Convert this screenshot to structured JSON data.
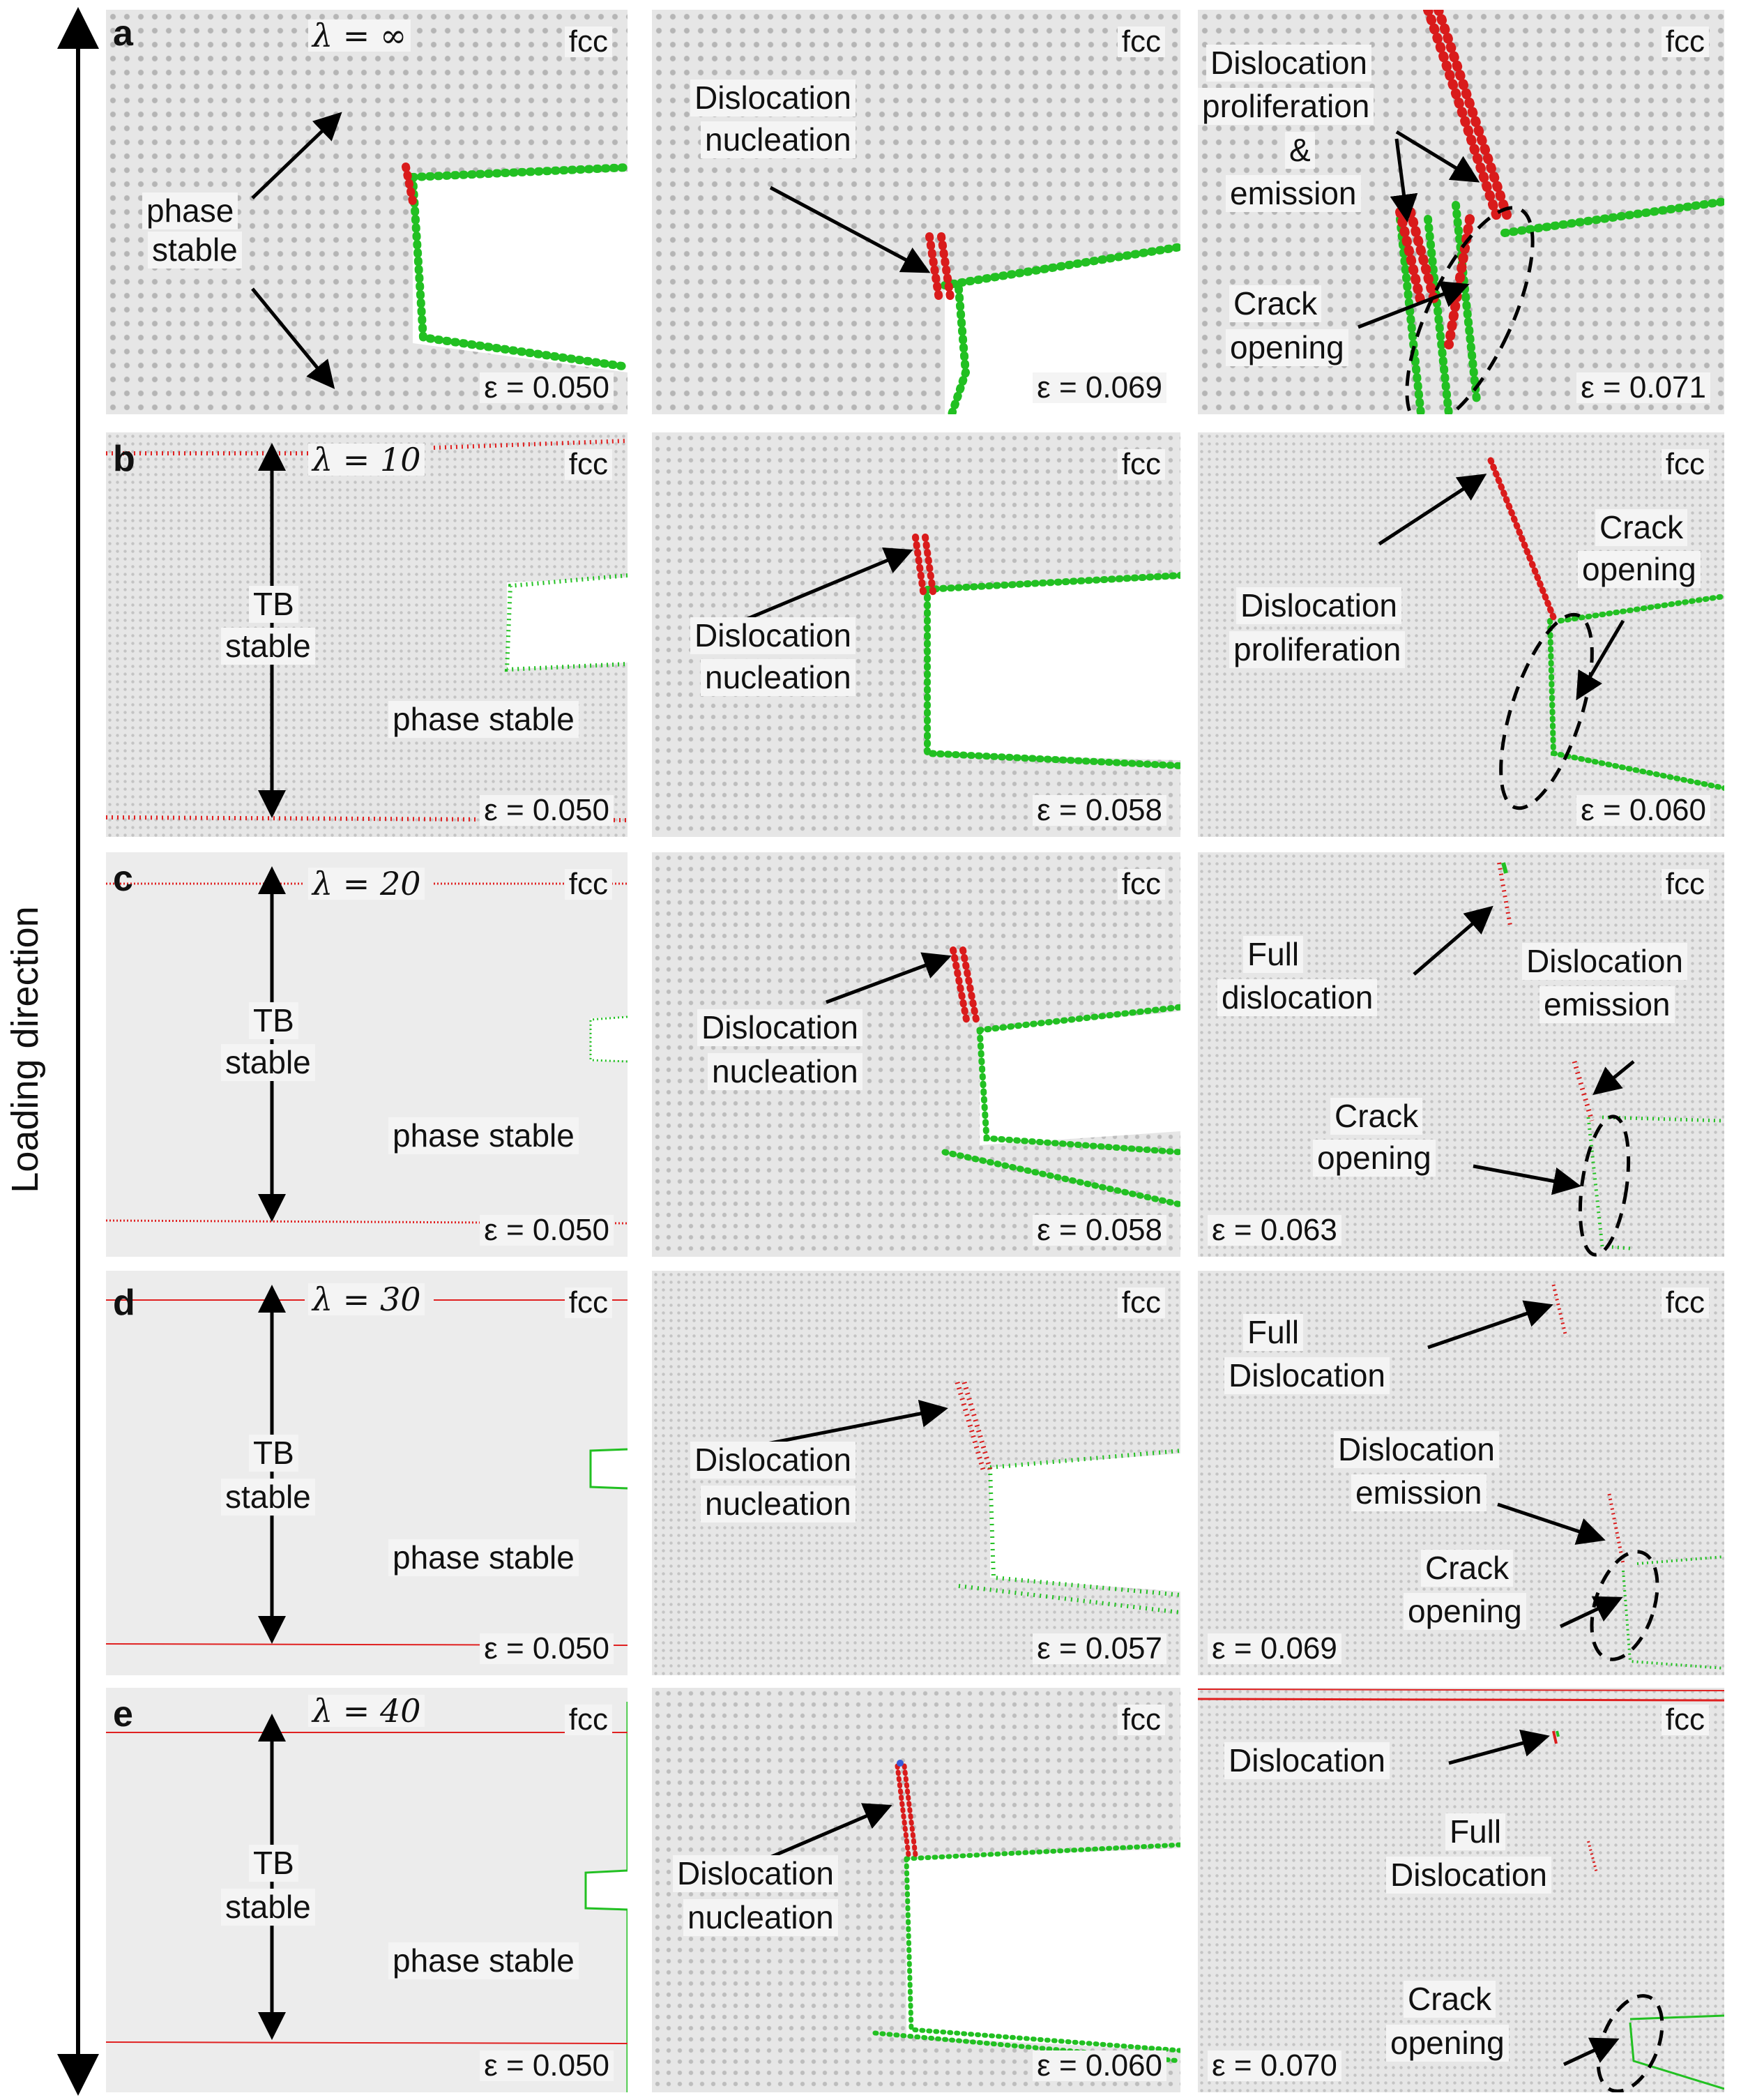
{
  "axis": {
    "label": "Loading direction"
  },
  "colors": {
    "dislocation": "#d91b1b",
    "surface": "#20c020",
    "arrow": "#000000",
    "twin": "#e02020"
  },
  "rows": [
    {
      "letter": "a",
      "lambda": "λ = ∞",
      "fcc": "fcc",
      "col1": {
        "labels": [
          "phase",
          "stable"
        ],
        "strain": "ε = 0.050"
      },
      "col2": {
        "labels": [
          "Dislocation",
          "nucleation"
        ],
        "strain": "ε = 0.069",
        "fcc": "fcc"
      },
      "col3": {
        "labels": [
          "Dislocation",
          "proliferation",
          "&",
          "emission",
          "Crack",
          "opening"
        ],
        "strain": "ε = 0.071",
        "fcc": "fcc"
      }
    },
    {
      "letter": "b",
      "lambda": "λ = 10",
      "fcc": "fcc",
      "col1": {
        "labels": [
          "TB",
          "stable",
          "phase stable"
        ],
        "strain": "ε = 0.050"
      },
      "col2": {
        "labels": [
          "Dislocation",
          "nucleation"
        ],
        "strain": "ε = 0.058",
        "fcc": "fcc"
      },
      "col3": {
        "labels": [
          "Dislocation",
          "proliferation",
          "Crack",
          "opening"
        ],
        "strain": "ε = 0.060",
        "fcc": "fcc"
      }
    },
    {
      "letter": "c",
      "lambda": "λ = 20",
      "fcc": "fcc",
      "col1": {
        "labels": [
          "TB",
          "stable",
          "phase stable"
        ],
        "strain": "ε = 0.050"
      },
      "col2": {
        "labels": [
          "Dislocation",
          "nucleation"
        ],
        "strain": "ε = 0.058",
        "fcc": "fcc"
      },
      "col3": {
        "labels": [
          "Full",
          "dislocation",
          "Dislocation",
          "emission",
          "Crack",
          "opening"
        ],
        "strain": "ε = 0.063",
        "fcc": "fcc"
      }
    },
    {
      "letter": "d",
      "lambda": "λ = 30",
      "fcc": "fcc",
      "col1": {
        "labels": [
          "TB",
          "stable",
          "phase stable"
        ],
        "strain": "ε = 0.050"
      },
      "col2": {
        "labels": [
          "Dislocation",
          "nucleation"
        ],
        "strain": "ε = 0.057",
        "fcc": "fcc"
      },
      "col3": {
        "labels": [
          "Full",
          "Dislocation",
          "Dislocation",
          "emission",
          "Crack",
          "opening"
        ],
        "strain": "ε = 0.069",
        "fcc": "fcc"
      }
    },
    {
      "letter": "e",
      "lambda": "λ = 40",
      "fcc": "fcc",
      "col1": {
        "labels": [
          "TB",
          "stable",
          "phase stable"
        ],
        "strain": "ε = 0.050"
      },
      "col2": {
        "labels": [
          "Dislocation",
          "nucleation"
        ],
        "strain": "ε = 0.060",
        "fcc": "fcc"
      },
      "col3": {
        "labels": [
          "Dislocation",
          "Full",
          "Dislocation",
          "Crack",
          "opening"
        ],
        "strain": "ε = 0.070",
        "fcc": "fcc"
      }
    }
  ]
}
